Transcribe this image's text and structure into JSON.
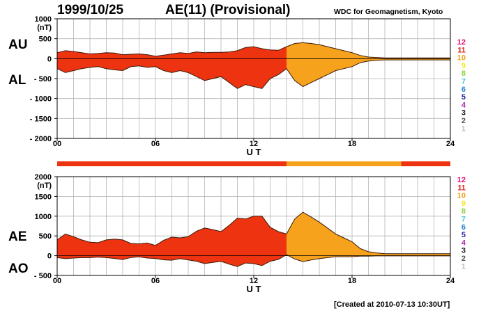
{
  "header": {
    "date": "1999/10/25",
    "title": "AE(11) (Provisional)",
    "credit": "WDC for Geomagnetism, Kyoto",
    "created": "[Created at 2010-07-13 10:30UT]"
  },
  "level_scale": {
    "labels": [
      "12",
      "11",
      "10",
      "9",
      "8",
      "7",
      "6",
      "5",
      "4",
      "3",
      "2",
      "1"
    ],
    "colors": [
      "#e6117c",
      "#d9241b",
      "#f3a21d",
      "#f4e82a",
      "#8ed53f",
      "#43c9d3",
      "#2f86d7",
      "#2a2aa8",
      "#b52ab6",
      "#222222",
      "#555555",
      "#bbbbbb"
    ]
  },
  "colors": {
    "red": "#ee3311",
    "orange": "#f7a21c"
  },
  "station_bar": {
    "segments": [
      {
        "from": 0,
        "to": 14,
        "level": "11"
      },
      {
        "from": 14,
        "to": 21,
        "level": "10"
      },
      {
        "from": 21,
        "to": 24,
        "level": "11"
      }
    ]
  },
  "chart_data": [
    {
      "type": "area",
      "series_labels": [
        "AU",
        "AL"
      ],
      "xlabel": "U T",
      "ylabel_unit": "(nT)",
      "xlim": [
        0,
        24
      ],
      "ylim": [
        -2000,
        1000
      ],
      "xticks": [
        0,
        6,
        12,
        18,
        24
      ],
      "xtick_labels": [
        "00",
        "06",
        "12",
        "18",
        "24"
      ],
      "yticks": [
        1000,
        500,
        0,
        -500,
        -1000,
        -1500,
        -2000
      ],
      "ytick_labels": [
        "1000",
        "500",
        "0",
        "- 500",
        "- 1000",
        "- 1500",
        "- 2000"
      ],
      "grid": true,
      "x": [
        0,
        0.5,
        1,
        1.5,
        2,
        2.5,
        3,
        3.5,
        4,
        4.5,
        5,
        5.5,
        6,
        6.5,
        7,
        7.5,
        8,
        8.5,
        9,
        9.5,
        10,
        10.5,
        11,
        11.5,
        12,
        12.5,
        13,
        13.5,
        14,
        14.5,
        15,
        15.5,
        16,
        16.5,
        17,
        17.5,
        18,
        18.5,
        19,
        19.5,
        20,
        21,
        22,
        23,
        24
      ],
      "series": [
        {
          "name": "AU",
          "values": [
            150,
            200,
            180,
            150,
            120,
            130,
            150,
            140,
            100,
            110,
            120,
            100,
            60,
            90,
            120,
            150,
            130,
            170,
            150,
            160,
            160,
            170,
            200,
            280,
            300,
            250,
            220,
            210,
            300,
            380,
            400,
            380,
            350,
            300,
            250,
            200,
            150,
            80,
            40,
            30,
            20,
            20,
            20,
            20,
            20
          ]
        },
        {
          "name": "AL",
          "values": [
            -250,
            -350,
            -300,
            -250,
            -220,
            -200,
            -250,
            -280,
            -300,
            -200,
            -180,
            -220,
            -200,
            -300,
            -350,
            -300,
            -350,
            -450,
            -550,
            -500,
            -450,
            -600,
            -750,
            -650,
            -700,
            -750,
            -500,
            -400,
            -250,
            -550,
            -700,
            -600,
            -500,
            -400,
            -300,
            -250,
            -200,
            -100,
            -60,
            -40,
            -30,
            -30,
            -30,
            -30,
            -30
          ]
        }
      ]
    },
    {
      "type": "area",
      "series_labels": [
        "AE",
        "AO"
      ],
      "xlabel": "U T",
      "ylabel_unit": "(nT)",
      "xlim": [
        0,
        24
      ],
      "ylim": [
        -500,
        2000
      ],
      "xticks": [
        0,
        6,
        12,
        18,
        24
      ],
      "xtick_labels": [
        "00",
        "06",
        "12",
        "18",
        "24"
      ],
      "yticks": [
        2000,
        1500,
        1000,
        500,
        0,
        -500
      ],
      "ytick_labels": [
        "2000",
        "1500",
        "1000",
        "500",
        "0",
        "- 500"
      ],
      "grid": true,
      "x": [
        0,
        0.5,
        1,
        1.5,
        2,
        2.5,
        3,
        3.5,
        4,
        4.5,
        5,
        5.5,
        6,
        6.5,
        7,
        7.5,
        8,
        8.5,
        9,
        9.5,
        10,
        10.5,
        11,
        11.5,
        12,
        12.5,
        13,
        13.5,
        14,
        14.5,
        15,
        15.5,
        16,
        16.5,
        17,
        17.5,
        18,
        18.5,
        19,
        19.5,
        20,
        21,
        22,
        23,
        24
      ],
      "series": [
        {
          "name": "AE",
          "values": [
            400,
            550,
            480,
            400,
            340,
            330,
            400,
            420,
            400,
            310,
            300,
            320,
            260,
            390,
            470,
            450,
            480,
            620,
            700,
            660,
            610,
            770,
            950,
            930,
            1000,
            1000,
            720,
            610,
            550,
            930,
            1100,
            980,
            850,
            700,
            550,
            450,
            350,
            180,
            100,
            70,
            50,
            50,
            50,
            50,
            50
          ]
        },
        {
          "name": "AO",
          "values": [
            -50,
            -75,
            -60,
            -50,
            -50,
            -35,
            -50,
            -70,
            -100,
            -45,
            -30,
            -60,
            -70,
            -105,
            -115,
            -75,
            -110,
            -140,
            -200,
            -170,
            -145,
            -215,
            -275,
            -185,
            -200,
            -250,
            -140,
            -95,
            25,
            -85,
            -150,
            -110,
            -75,
            -50,
            -25,
            -25,
            -25,
            -10,
            -10,
            -5,
            -5,
            -5,
            -5,
            -5,
            -5
          ]
        }
      ]
    }
  ]
}
